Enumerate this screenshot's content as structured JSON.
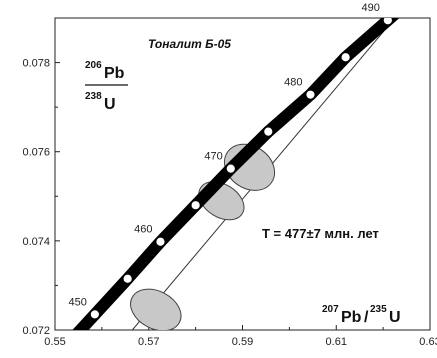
{
  "chart_data": {
    "type": "scatter",
    "title": "Тоналит Б-05",
    "annotation": "T = 477±7 млн. лет",
    "xlabel": {
      "mass": "207",
      "element": "Pb",
      "slash": "/",
      "mass2": "235",
      "element2": "U"
    },
    "ylabel": {
      "num_mass": "206",
      "num_element": "Pb",
      "den_mass": "238",
      "den_element": "U"
    },
    "xlim": [
      0.55,
      0.63
    ],
    "ylim": [
      0.072,
      0.079
    ],
    "x_ticks": [
      {
        "value": 0.55,
        "label": "0.55"
      },
      {
        "value": 0.57,
        "label": "0.57"
      },
      {
        "value": 0.59,
        "label": "0.59"
      },
      {
        "value": 0.61,
        "label": "0.61"
      },
      {
        "value": 0.63,
        "label": "0.63"
      }
    ],
    "y_ticks": [
      {
        "value": 0.072,
        "label": "0.072"
      },
      {
        "value": 0.074,
        "label": "0.074"
      },
      {
        "value": 0.076,
        "label": "0.076"
      },
      {
        "value": 0.078,
        "label": "0.078"
      }
    ],
    "concordia": [
      {
        "age": 450,
        "x": 0.5585,
        "y": 0.07235,
        "label": "450"
      },
      {
        "age": 455,
        "x": 0.5655,
        "y": 0.07315,
        "label": ""
      },
      {
        "age": 460,
        "x": 0.5725,
        "y": 0.07398,
        "label": "460"
      },
      {
        "age": 465,
        "x": 0.58,
        "y": 0.0748,
        "label": ""
      },
      {
        "age": 470,
        "x": 0.5875,
        "y": 0.07562,
        "label": "470"
      },
      {
        "age": 475,
        "x": 0.5955,
        "y": 0.07645,
        "label": ""
      },
      {
        "age": 480,
        "x": 0.6045,
        "y": 0.07728,
        "label": "480"
      },
      {
        "age": 485,
        "x": 0.612,
        "y": 0.07812,
        "label": ""
      },
      {
        "age": 490,
        "x": 0.621,
        "y": 0.07895,
        "label": "490"
      }
    ],
    "discordia": {
      "x1": 0.5665,
      "y1": 0.072,
      "x2": 0.6225,
      "y2": 0.079
    },
    "ellipses": [
      {
        "x": 0.5715,
        "y": 0.07245,
        "rx": 0.004,
        "ry": 0.0006,
        "tilt": 62
      },
      {
        "x": 0.5855,
        "y": 0.0749,
        "rx": 0.0035,
        "ry": 0.00055,
        "tilt": 58
      },
      {
        "x": 0.5915,
        "y": 0.07565,
        "rx": 0.0045,
        "ry": 0.0006,
        "tilt": 55
      }
    ],
    "grid": false,
    "legend": "none"
  }
}
